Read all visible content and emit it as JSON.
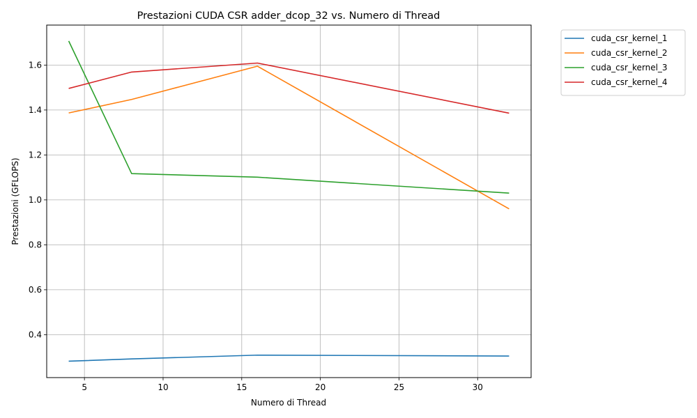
{
  "chart_data": {
    "type": "line",
    "title": "Prestazioni CUDA CSR adder_dcop_32 vs. Numero di Thread",
    "xlabel": "Numero di Thread",
    "ylabel": "Prestazioni (GFLOPS)",
    "x": [
      4,
      8,
      16,
      32
    ],
    "xlim": [
      2.6,
      33.4
    ],
    "ylim": [
      0.209,
      1.778
    ],
    "xticks": [
      5,
      10,
      15,
      20,
      25,
      30
    ],
    "yticks": [
      0.4,
      0.6,
      0.8,
      1.0,
      1.2,
      1.4,
      1.6
    ],
    "ytick_labels": [
      "0.4",
      "0.6",
      "0.8",
      "1.0",
      "1.2",
      "1.4",
      "1.6"
    ],
    "grid": true,
    "legend_position": "outside-top-right",
    "series": [
      {
        "name": "cuda_csr_kernel_1",
        "color": "#1f77b4",
        "values": [
          0.282,
          0.292,
          0.309,
          0.305
        ]
      },
      {
        "name": "cuda_csr_kernel_2",
        "color": "#ff7f0e",
        "values": [
          1.387,
          1.447,
          1.595,
          0.96
        ]
      },
      {
        "name": "cuda_csr_kernel_3",
        "color": "#2ca02c",
        "values": [
          1.707,
          1.117,
          1.101,
          1.03
        ]
      },
      {
        "name": "cuda_csr_kernel_4",
        "color": "#d62728",
        "values": [
          1.496,
          1.569,
          1.609,
          1.386
        ]
      }
    ]
  }
}
